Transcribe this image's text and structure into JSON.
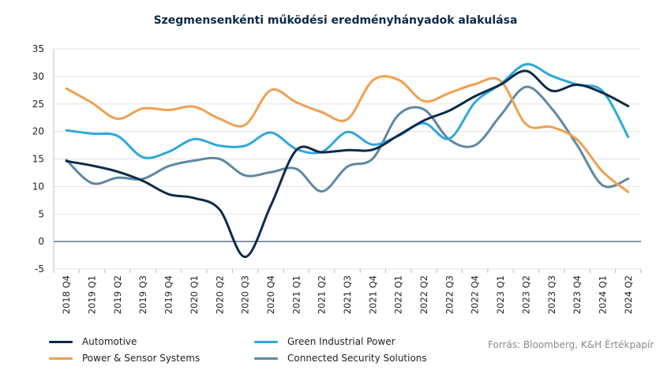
{
  "chart_data": {
    "type": "line",
    "title": "Szegmensenkénti működési eredményhányadok alakulása",
    "xlabel": "",
    "ylabel": "",
    "ylim": [
      -5,
      35
    ],
    "yticks": [
      -5,
      0,
      5,
      10,
      15,
      20,
      25,
      30,
      35
    ],
    "grid": true,
    "legend_position": "bottom",
    "categories": [
      "2018 Q4",
      "2019 Q1",
      "2019 Q2",
      "2019 Q3",
      "2019 Q4",
      "2020 Q1",
      "2020 Q2",
      "2020 Q3",
      "2020 Q4",
      "2021 Q1",
      "2021 Q2",
      "2021 Q3",
      "2021 Q4",
      "2022 Q1",
      "2022 Q2",
      "2022 Q3",
      "2022 Q4",
      "2023 Q1",
      "2023 Q2",
      "2023 Q3",
      "2023 Q4",
      "2024 Q1",
      "2024 Q2"
    ],
    "series": [
      {
        "name": "Automotive",
        "color": "#0b2a4a",
        "values": [
          14.6,
          13.8,
          12.7,
          11.0,
          8.6,
          7.9,
          5.8,
          -2.8,
          6.5,
          16.6,
          16.2,
          16.6,
          16.7,
          19.3,
          22.0,
          23.8,
          26.4,
          28.5,
          31.0,
          27.4,
          28.5,
          27.0,
          24.6
        ]
      },
      {
        "name": "Power & Sensor Systems",
        "color": "#f0a050",
        "values": [
          27.8,
          25.2,
          22.3,
          24.2,
          23.9,
          24.5,
          22.3,
          21.2,
          27.5,
          25.3,
          23.5,
          22.2,
          29.3,
          29.4,
          25.5,
          27.0,
          28.6,
          29.2,
          21.3,
          20.8,
          18.5,
          12.7,
          9.0
        ]
      },
      {
        "name": "Green Industrial Power",
        "color": "#2ea8dc",
        "values": [
          20.2,
          19.6,
          19.2,
          15.3,
          16.3,
          18.6,
          17.4,
          17.4,
          19.8,
          16.8,
          16.3,
          19.9,
          17.6,
          19.2,
          21.5,
          18.7,
          25.3,
          28.6,
          32.2,
          30.1,
          28.5,
          27.3,
          19.0
        ]
      },
      {
        "name": "Connected Security Solutions",
        "color": "#5e88a3",
        "values": [
          14.8,
          10.6,
          11.6,
          11.4,
          13.7,
          14.7,
          15.0,
          12.0,
          12.6,
          13.2,
          9.1,
          13.6,
          15.1,
          23.0,
          24.0,
          18.5,
          17.5,
          22.9,
          28.1,
          24.2,
          17.5,
          10.2,
          11.4
        ]
      }
    ]
  },
  "legend": [
    {
      "label": "Automotive",
      "color": "#0b2a4a"
    },
    {
      "label": "Power & Sensor Systems",
      "color": "#f0a050"
    },
    {
      "label": "Green Industrial Power",
      "color": "#2ea8dc"
    },
    {
      "label": "Connected Security Solutions",
      "color": "#5e88a3"
    }
  ],
  "source": "Forrás: Bloomberg,  K&H Értékpapír"
}
